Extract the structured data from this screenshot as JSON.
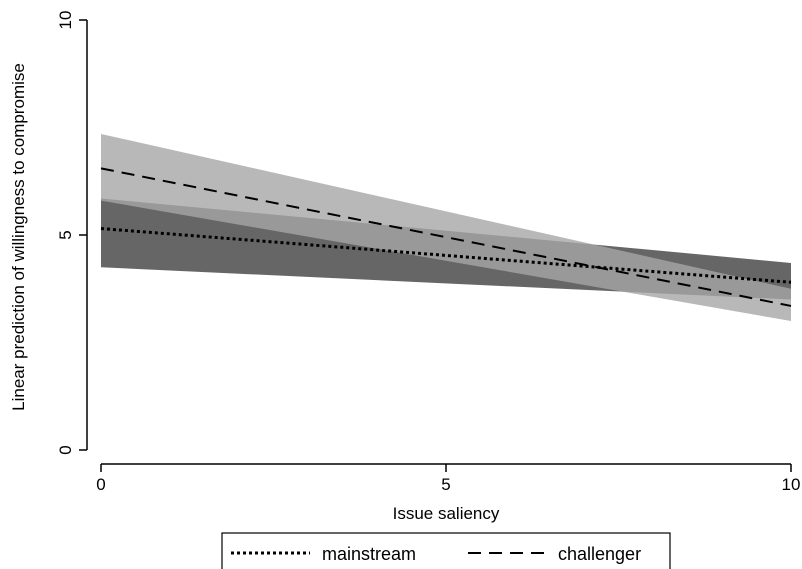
{
  "chart_data": {
    "type": "line",
    "title": "",
    "xlabel": "Issue saliency",
    "ylabel": "Linear prediction of willingness to compromise",
    "xlim": [
      0,
      10
    ],
    "ylim": [
      0,
      10
    ],
    "xticks": [
      0,
      5,
      10
    ],
    "yticks": [
      0,
      5,
      10
    ],
    "grid": false,
    "legend_position": "bottom",
    "series": [
      {
        "name": "mainstream",
        "style": "dotted",
        "band_color": "#666666",
        "x": [
          0,
          10
        ],
        "y": [
          5.15,
          3.9
        ],
        "ci_lower": [
          4.25,
          3.5
        ],
        "ci_upper": [
          5.85,
          4.35
        ]
      },
      {
        "name": "challenger",
        "style": "dashed",
        "band_color": "#a6a6a6",
        "x": [
          0,
          10
        ],
        "y": [
          6.55,
          3.35
        ],
        "ci_lower": [
          5.8,
          3.0
        ],
        "ci_upper": [
          7.35,
          3.75
        ]
      }
    ]
  }
}
